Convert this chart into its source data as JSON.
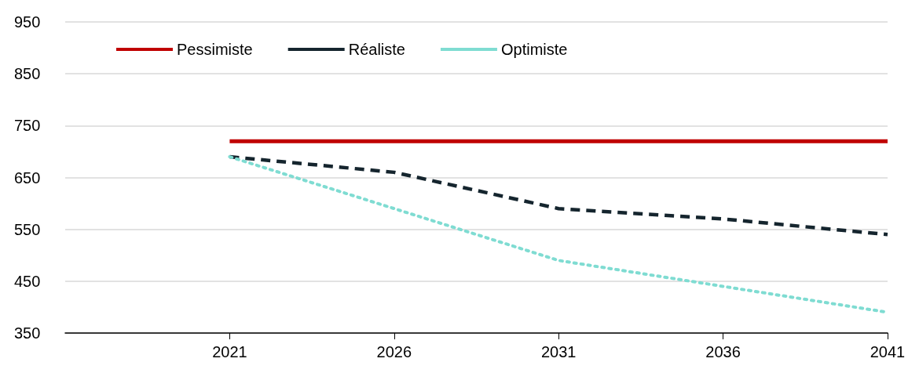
{
  "chart_data": {
    "type": "line",
    "x": [
      2021,
      2026,
      2031,
      2036,
      2041
    ],
    "series": [
      {
        "name": "Pessimiste",
        "color": "#c00000",
        "line_style": "solid",
        "values": [
          720,
          720,
          720,
          720,
          720
        ]
      },
      {
        "name": "Réaliste",
        "color": "#15252e",
        "line_style": "dashed",
        "values": [
          690,
          660,
          590,
          570,
          540
        ]
      },
      {
        "name": "Optimiste",
        "color": "#7fdcd2",
        "line_style": "dotted",
        "values": [
          690,
          590,
          490,
          440,
          390
        ]
      }
    ],
    "xlim": [
      2016,
      2041
    ],
    "xticks": [
      2021,
      2026,
      2031,
      2036,
      2041
    ],
    "ylim": [
      350,
      950
    ],
    "yticks": [
      350,
      450,
      550,
      650,
      750,
      850,
      950
    ],
    "grid": "y",
    "legend": "top left",
    "marker": "none"
  }
}
